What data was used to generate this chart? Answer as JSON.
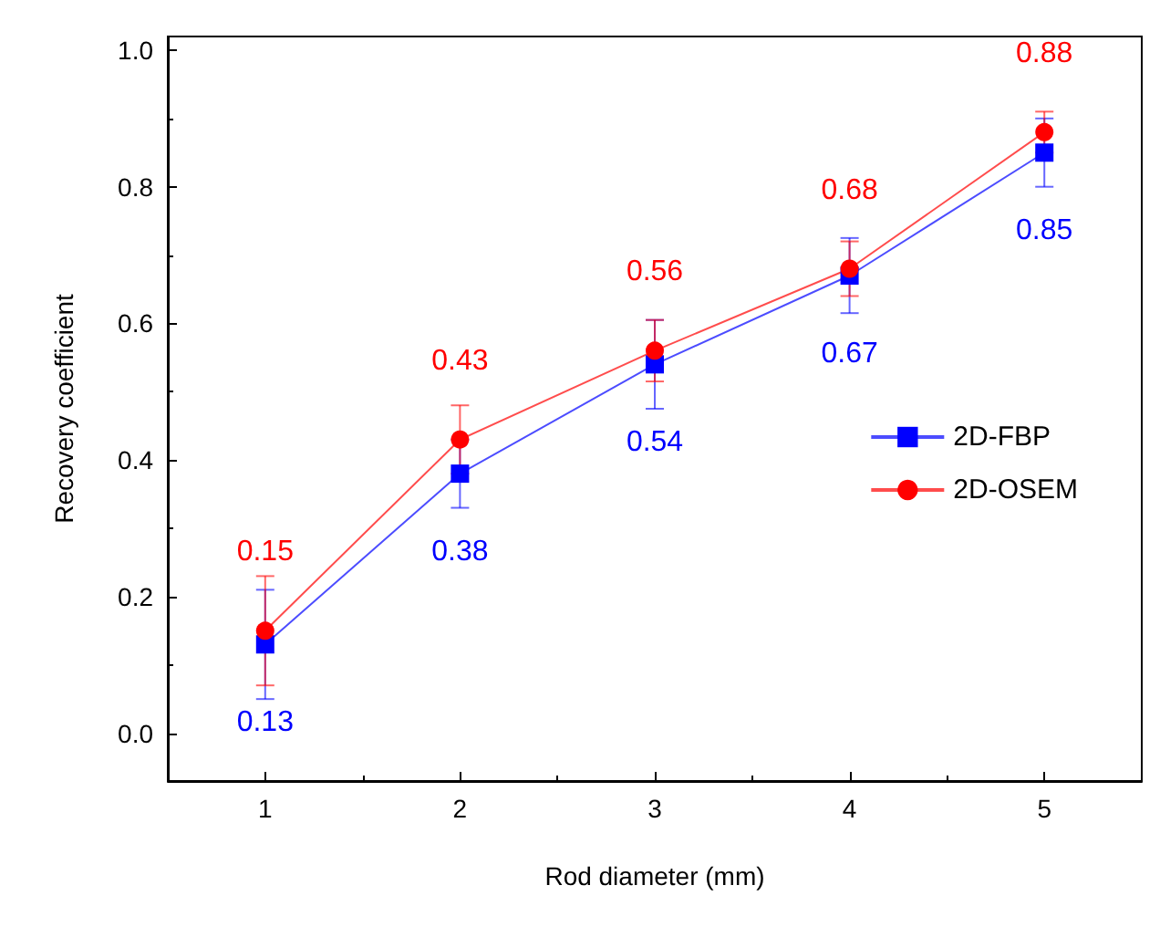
{
  "chart_data": {
    "type": "line",
    "xlabel": "Rod diameter (mm)",
    "ylabel": "Recovery coefficient",
    "x": [
      1,
      2,
      3,
      4,
      5
    ],
    "series": [
      {
        "name": "2D-FBP",
        "color": "#0000ff",
        "marker": "square",
        "values": [
          0.13,
          0.38,
          0.54,
          0.67,
          0.85
        ],
        "errors": [
          0.08,
          0.05,
          0.065,
          0.055,
          0.05
        ]
      },
      {
        "name": "2D-OSEM",
        "color": "#ff0000",
        "marker": "circle",
        "values": [
          0.15,
          0.43,
          0.56,
          0.68,
          0.88
        ],
        "errors": [
          0.08,
          0.05,
          0.045,
          0.04,
          0.03
        ]
      }
    ],
    "xlim": [
      0.5,
      5.5
    ],
    "xticks": [
      1,
      2,
      3,
      4,
      5
    ],
    "ylim": [
      -0.07,
      1.02
    ],
    "yticks": [
      {
        "value": 0,
        "label": "0.0"
      },
      0.2,
      0.4,
      0.6,
      0.8,
      {
        "value": 1,
        "label": "1.0"
      }
    ],
    "data_labels": true,
    "legend": "right",
    "grid": false,
    "line_style": "solid"
  }
}
